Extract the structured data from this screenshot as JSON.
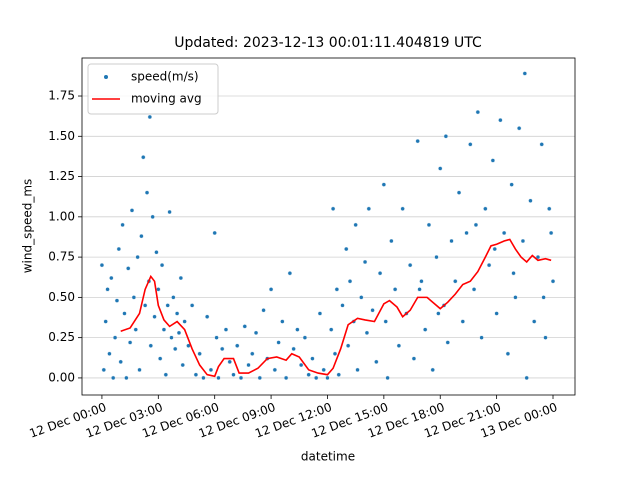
{
  "chart_data": {
    "type": "scatter",
    "title": "Updated: 2023-12-13 00:01:11.404819 UTC",
    "xlabel": "datetime",
    "ylabel": "wind_speed_ms",
    "xlim": [
      -1.06,
      25.17
    ],
    "ylim": [
      -0.106,
      1.986
    ],
    "xticks": [
      {
        "value": 0,
        "label": "12 Dec 00:00"
      },
      {
        "value": 3,
        "label": "12 Dec 03:00"
      },
      {
        "value": 6,
        "label": "12 Dec 06:00"
      },
      {
        "value": 9,
        "label": "12 Dec 09:00"
      },
      {
        "value": 12,
        "label": "12 Dec 12:00"
      },
      {
        "value": 15,
        "label": "12 Dec 15:00"
      },
      {
        "value": 18,
        "label": "12 Dec 18:00"
      },
      {
        "value": 21,
        "label": "12 Dec 21:00"
      },
      {
        "value": 24,
        "label": "13 Dec 00:00"
      }
    ],
    "yticks": [
      {
        "value": 0,
        "label": "0.00"
      },
      0.25,
      {
        "value": 0.5,
        "label": "0.50"
      },
      0.75,
      {
        "value": 1,
        "label": "1.00"
      },
      1.25,
      {
        "value": 1.5,
        "label": "1.50"
      },
      1.75
    ],
    "grid": "y",
    "legend": "upper left",
    "series": [
      {
        "name": "speed(m/s)",
        "type": "scatter",
        "color": "#1f77b4",
        "x": [
          0.0,
          0.1,
          0.2,
          0.3,
          0.4,
          0.5,
          0.6,
          0.7,
          0.8,
          0.9,
          1.0,
          1.1,
          1.2,
          1.3,
          1.4,
          1.5,
          1.6,
          1.7,
          1.8,
          1.9,
          2.0,
          2.1,
          2.2,
          2.3,
          2.4,
          2.5,
          2.55,
          2.6,
          2.7,
          2.8,
          2.9,
          3.0,
          3.1,
          3.2,
          3.3,
          3.4,
          3.5,
          3.6,
          3.7,
          3.8,
          3.9,
          4.0,
          4.1,
          4.2,
          4.3,
          4.4,
          4.6,
          4.8,
          5.0,
          5.2,
          5.4,
          5.6,
          5.8,
          6.0,
          6.1,
          6.2,
          6.4,
          6.6,
          6.8,
          7.0,
          7.2,
          7.4,
          7.6,
          7.8,
          8.0,
          8.2,
          8.4,
          8.6,
          8.8,
          9.0,
          9.2,
          9.4,
          9.6,
          9.8,
          10.0,
          10.2,
          10.4,
          10.6,
          10.8,
          11.0,
          11.2,
          11.4,
          11.6,
          11.8,
          12.0,
          12.2,
          12.3,
          12.4,
          12.5,
          12.6,
          12.8,
          13.0,
          13.1,
          13.2,
          13.4,
          13.5,
          13.6,
          13.8,
          14.0,
          14.1,
          14.2,
          14.4,
          14.6,
          14.8,
          15.0,
          15.1,
          15.2,
          15.4,
          15.6,
          15.8,
          16.0,
          16.2,
          16.4,
          16.6,
          16.8,
          17.0,
          17.2,
          17.4,
          17.6,
          17.8,
          18.0,
          18.2,
          18.3,
          18.4,
          18.6,
          18.8,
          19.0,
          19.2,
          19.4,
          19.6,
          19.8,
          20.0,
          20.2,
          20.4,
          20.6,
          20.8,
          21.0,
          21.2,
          21.4,
          21.6,
          21.8,
          22.0,
          22.2,
          22.4,
          22.5,
          22.6,
          22.8,
          23.0,
          23.2,
          23.4,
          23.6,
          23.8,
          24.0,
          23.9,
          23.5,
          21.9,
          20.9,
          19.9,
          17.9,
          16.9
        ],
        "values": [
          0.7,
          0.05,
          0.35,
          0.55,
          0.15,
          0.62,
          0.0,
          0.25,
          0.48,
          0.8,
          0.1,
          0.95,
          0.4,
          0.0,
          0.68,
          0.22,
          1.04,
          0.5,
          0.3,
          0.75,
          0.05,
          0.88,
          1.37,
          0.45,
          1.15,
          0.6,
          1.62,
          0.2,
          1.0,
          0.38,
          0.78,
          0.55,
          0.12,
          0.7,
          0.3,
          0.02,
          0.45,
          1.03,
          0.25,
          0.5,
          0.18,
          0.4,
          0.28,
          0.62,
          0.08,
          0.35,
          0.2,
          0.45,
          0.02,
          0.15,
          0.0,
          0.38,
          0.05,
          0.9,
          0.25,
          0.0,
          0.18,
          0.3,
          0.1,
          0.02,
          0.2,
          0.0,
          0.32,
          0.08,
          0.15,
          0.28,
          0.0,
          0.42,
          0.12,
          0.55,
          0.05,
          0.22,
          0.35,
          0.0,
          0.65,
          0.18,
          0.3,
          0.08,
          0.25,
          0.02,
          0.12,
          0.0,
          0.4,
          0.05,
          0.0,
          0.3,
          1.05,
          0.15,
          0.55,
          0.02,
          0.45,
          0.8,
          0.2,
          0.6,
          0.35,
          0.95,
          0.05,
          0.5,
          0.72,
          0.28,
          1.05,
          0.42,
          0.1,
          0.65,
          1.2,
          0.35,
          0.0,
          0.85,
          0.55,
          0.2,
          1.05,
          0.4,
          0.7,
          0.12,
          1.47,
          0.6,
          0.3,
          0.95,
          0.05,
          0.75,
          1.3,
          0.45,
          1.5,
          0.22,
          0.85,
          0.6,
          1.15,
          0.35,
          0.9,
          1.45,
          0.55,
          1.65,
          0.25,
          1.05,
          0.7,
          1.35,
          0.4,
          1.6,
          0.9,
          0.15,
          1.2,
          0.5,
          1.55,
          0.85,
          1.89,
          0.0,
          1.1,
          0.35,
          0.75,
          1.45,
          0.25,
          1.05,
          0.6,
          0.9,
          0.5,
          0.65,
          0.8,
          0.95,
          0.4,
          0.55
        ]
      },
      {
        "name": "moving avg",
        "type": "line",
        "color": "#ff0000",
        "x": [
          1.0,
          1.5,
          2.0,
          2.3,
          2.6,
          2.8,
          3.0,
          3.3,
          3.6,
          4.0,
          4.4,
          4.8,
          5.2,
          5.6,
          6.0,
          6.2,
          6.5,
          7.0,
          7.3,
          7.8,
          8.3,
          8.8,
          9.3,
          9.8,
          10.1,
          10.5,
          11.0,
          11.5,
          12.0,
          12.3,
          12.7,
          13.1,
          13.6,
          14.0,
          14.5,
          15.0,
          15.3,
          15.7,
          16.0,
          16.4,
          16.8,
          17.3,
          17.6,
          18.0,
          18.4,
          18.8,
          19.2,
          19.6,
          20.0,
          20.4,
          20.7,
          21.0,
          21.4,
          21.7,
          22.0,
          22.3,
          22.6,
          22.9,
          23.2,
          23.6,
          23.9
        ],
        "values": [
          0.29,
          0.31,
          0.4,
          0.55,
          0.63,
          0.6,
          0.45,
          0.36,
          0.32,
          0.35,
          0.3,
          0.18,
          0.08,
          0.02,
          0.01,
          0.07,
          0.12,
          0.12,
          0.03,
          0.03,
          0.06,
          0.12,
          0.13,
          0.11,
          0.15,
          0.13,
          0.05,
          0.03,
          0.02,
          0.06,
          0.18,
          0.33,
          0.37,
          0.36,
          0.35,
          0.46,
          0.48,
          0.44,
          0.38,
          0.42,
          0.5,
          0.5,
          0.47,
          0.43,
          0.47,
          0.52,
          0.58,
          0.6,
          0.66,
          0.75,
          0.82,
          0.83,
          0.85,
          0.86,
          0.8,
          0.75,
          0.72,
          0.76,
          0.73,
          0.74,
          0.73
        ]
      }
    ]
  }
}
